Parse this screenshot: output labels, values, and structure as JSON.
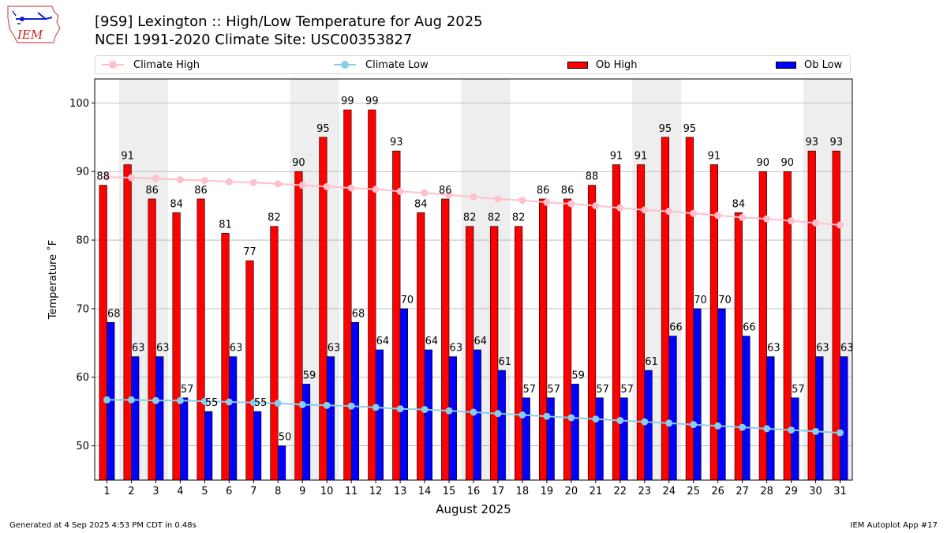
{
  "logo": {
    "text": "IEM"
  },
  "title": {
    "line1": "[9S9] Lexington :: High/Low Temperature for Aug 2025",
    "line2": "NCEI 1991-2020 Climate Site: USC00353827"
  },
  "legend": {
    "climate_high": "Climate High",
    "climate_low": "Climate Low",
    "ob_high": "Ob High",
    "ob_low": "Ob Low"
  },
  "colors": {
    "ob_high": "#ff0000",
    "ob_low": "#0000ff",
    "climate_high": "#ffc0cb",
    "climate_low": "#87ceeb",
    "weekend_shade": "#eeeeee"
  },
  "footer": {
    "left": "Generated at 4 Sep 2025 4:53 PM CDT in 0.48s",
    "right": "IEM Autoplot App #17"
  },
  "chart_data": {
    "type": "bar",
    "xlabel": "August 2025",
    "ylabel": "Temperature ˚F",
    "ylim": [
      45,
      103.5
    ],
    "yticks": [
      50,
      60,
      70,
      80,
      90,
      100
    ],
    "grid": "horizontal",
    "legend_position": "top",
    "categories": [
      "1",
      "2",
      "3",
      "4",
      "5",
      "6",
      "7",
      "8",
      "9",
      "10",
      "11",
      "12",
      "13",
      "14",
      "15",
      "16",
      "17",
      "18",
      "19",
      "20",
      "21",
      "22",
      "23",
      "24",
      "25",
      "26",
      "27",
      "28",
      "29",
      "30",
      "31"
    ],
    "shaded_days": [
      2,
      3,
      9,
      10,
      16,
      17,
      23,
      24,
      30,
      31
    ],
    "series": [
      {
        "name": "Ob High",
        "type": "bar",
        "values": [
          88,
          91,
          86,
          84,
          86,
          81,
          77,
          82,
          90,
          95,
          99,
          99,
          93,
          84,
          86,
          82,
          82,
          82,
          86,
          86,
          88,
          91,
          91,
          95,
          95,
          91,
          84,
          90,
          90,
          93,
          93
        ]
      },
      {
        "name": "Ob Low",
        "type": "bar",
        "values": [
          68,
          63,
          63,
          57,
          55,
          63,
          55,
          50,
          59,
          63,
          68,
          64,
          70,
          64,
          63,
          64,
          61,
          57,
          57,
          59,
          57,
          57,
          61,
          66,
          70,
          70,
          66,
          63,
          57,
          63,
          63
        ]
      },
      {
        "name": "Climate High",
        "type": "line",
        "values": [
          89.2,
          89.1,
          89.0,
          88.8,
          88.7,
          88.5,
          88.4,
          88.2,
          88.0,
          87.8,
          87.6,
          87.4,
          87.1,
          86.9,
          86.6,
          86.3,
          86.0,
          85.8,
          85.5,
          85.3,
          85.0,
          84.7,
          84.4,
          84.2,
          83.9,
          83.6,
          83.3,
          83.1,
          82.8,
          82.5,
          82.2
        ]
      },
      {
        "name": "Climate Low",
        "type": "line",
        "values": [
          56.7,
          56.7,
          56.6,
          56.6,
          56.5,
          56.4,
          56.3,
          56.2,
          56.0,
          55.9,
          55.8,
          55.6,
          55.4,
          55.3,
          55.1,
          54.9,
          54.7,
          54.5,
          54.3,
          54.1,
          53.9,
          53.7,
          53.5,
          53.3,
          53.1,
          52.9,
          52.7,
          52.5,
          52.3,
          52.1,
          51.9
        ]
      }
    ]
  }
}
